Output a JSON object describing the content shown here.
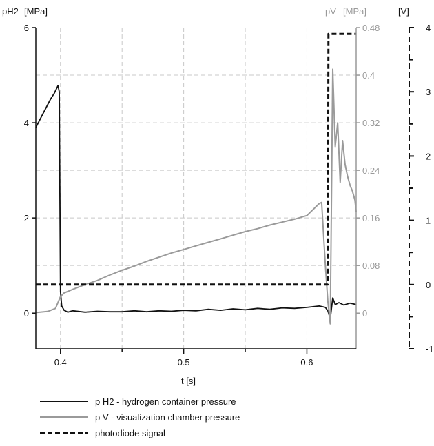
{
  "chart_data": {
    "type": "line",
    "x": {
      "label": "t [s]",
      "range": [
        0.38,
        0.64
      ],
      "ticks": [
        0.4,
        0.5,
        0.6
      ],
      "tick_labels": [
        "0.4",
        "0.5",
        "0.6"
      ],
      "dashed_grid": [
        0.4,
        0.45,
        0.5,
        0.55,
        0.6
      ]
    },
    "axes": {
      "left": {
        "label_main": "pH2",
        "label_unit": "[MPa]",
        "range": [
          -0.75,
          6
        ],
        "ticks": [
          0,
          2,
          4,
          6
        ],
        "tick_labels": [
          "0",
          "2",
          "4",
          "6"
        ],
        "color": "#111111"
      },
      "right": {
        "label_main": "pV",
        "label_unit": "[MPa]",
        "range": [
          -0.06,
          0.48
        ],
        "ticks": [
          0,
          0.08,
          0.16,
          0.24,
          0.32,
          0.4,
          0.48
        ],
        "tick_labels": [
          "0",
          "0.08",
          "0.16",
          "0.24",
          "0.32",
          "0.4",
          "0.48"
        ],
        "color": "#999999"
      },
      "far_right": {
        "label": "[V]",
        "range": [
          -1,
          4
        ],
        "ticks": [
          -1,
          0,
          1,
          2,
          3,
          4
        ],
        "tick_labels": [
          "-1",
          "0",
          "1",
          "2",
          "3",
          "4"
        ],
        "color": "#111111"
      }
    },
    "horizontal_grid": [
      1,
      2,
      3,
      4,
      5
    ],
    "grid": "dashed",
    "series": [
      {
        "name": "p H2 - hydrogen container pressure",
        "axis": "left",
        "color": "#111111",
        "style": "solid",
        "points": [
          [
            0.38,
            3.9
          ],
          [
            0.383,
            4.05
          ],
          [
            0.386,
            4.2
          ],
          [
            0.389,
            4.35
          ],
          [
            0.392,
            4.5
          ],
          [
            0.395,
            4.62
          ],
          [
            0.398,
            4.78
          ],
          [
            0.399,
            4.65
          ],
          [
            0.4,
            0.45
          ],
          [
            0.401,
            0.15
          ],
          [
            0.403,
            0.06
          ],
          [
            0.406,
            0.02
          ],
          [
            0.41,
            0.05
          ],
          [
            0.42,
            0.02
          ],
          [
            0.43,
            0.04
          ],
          [
            0.44,
            0.03
          ],
          [
            0.45,
            0.03
          ],
          [
            0.46,
            0.05
          ],
          [
            0.47,
            0.03
          ],
          [
            0.48,
            0.05
          ],
          [
            0.49,
            0.04
          ],
          [
            0.5,
            0.06
          ],
          [
            0.51,
            0.05
          ],
          [
            0.52,
            0.08
          ],
          [
            0.53,
            0.06
          ],
          [
            0.54,
            0.09
          ],
          [
            0.55,
            0.07
          ],
          [
            0.56,
            0.1
          ],
          [
            0.57,
            0.08
          ],
          [
            0.58,
            0.11
          ],
          [
            0.59,
            0.1
          ],
          [
            0.6,
            0.12
          ],
          [
            0.61,
            0.15
          ],
          [
            0.615,
            0.12
          ],
          [
            0.617,
            0.05
          ],
          [
            0.619,
            -0.12
          ],
          [
            0.621,
            0.32
          ],
          [
            0.623,
            0.18
          ],
          [
            0.626,
            0.22
          ],
          [
            0.63,
            0.17
          ],
          [
            0.635,
            0.21
          ],
          [
            0.64,
            0.18
          ]
        ]
      },
      {
        "name": "p V - visualization chamber pressure",
        "axis": "right",
        "color": "#9a9a9a",
        "style": "solid",
        "points": [
          [
            0.38,
            0.001
          ],
          [
            0.39,
            0.003
          ],
          [
            0.396,
            0.008
          ],
          [
            0.4,
            0.028
          ],
          [
            0.403,
            0.034
          ],
          [
            0.41,
            0.04
          ],
          [
            0.42,
            0.048
          ],
          [
            0.43,
            0.055
          ],
          [
            0.44,
            0.064
          ],
          [
            0.45,
            0.072
          ],
          [
            0.46,
            0.079
          ],
          [
            0.47,
            0.087
          ],
          [
            0.48,
            0.094
          ],
          [
            0.49,
            0.101
          ],
          [
            0.5,
            0.107
          ],
          [
            0.51,
            0.113
          ],
          [
            0.52,
            0.119
          ],
          [
            0.53,
            0.125
          ],
          [
            0.54,
            0.131
          ],
          [
            0.55,
            0.137
          ],
          [
            0.56,
            0.142
          ],
          [
            0.57,
            0.148
          ],
          [
            0.58,
            0.153
          ],
          [
            0.59,
            0.158
          ],
          [
            0.6,
            0.164
          ],
          [
            0.61,
            0.184
          ],
          [
            0.612,
            0.186
          ],
          [
            0.615,
            0.08
          ],
          [
            0.617,
            0.02
          ],
          [
            0.619,
            -0.018
          ],
          [
            0.621,
            0.41
          ],
          [
            0.623,
            0.28
          ],
          [
            0.625,
            0.32
          ],
          [
            0.627,
            0.22
          ],
          [
            0.629,
            0.29
          ],
          [
            0.631,
            0.25
          ],
          [
            0.633,
            0.23
          ],
          [
            0.635,
            0.215
          ],
          [
            0.637,
            0.205
          ],
          [
            0.639,
            0.19
          ],
          [
            0.64,
            0.17
          ]
        ]
      },
      {
        "name": "photodiode signal",
        "axis": "far_right",
        "color": "#111111",
        "style": "dashed",
        "points": [
          [
            0.38,
            0.0
          ],
          [
            0.616,
            0.0
          ],
          [
            0.617,
            0.0
          ],
          [
            0.6175,
            3.9
          ],
          [
            0.64,
            3.9
          ]
        ]
      }
    ],
    "legend": {
      "placement": "bottom-left",
      "entries": [
        {
          "label": "p H2 - hydrogen container pressure",
          "color": "#111111",
          "style": "solid"
        },
        {
          "label": "p V - visualization chamber pressure",
          "color": "#9a9a9a",
          "style": "solid"
        },
        {
          "label": "photodiode signal",
          "color": "#111111",
          "style": "dashed"
        }
      ]
    }
  }
}
